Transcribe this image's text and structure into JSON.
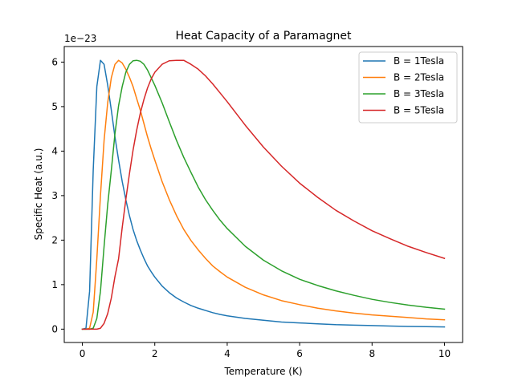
{
  "chart_data": {
    "type": "line",
    "title": "Heat Capacity of a Paramagnet",
    "xlabel": "Temperature (K)",
    "ylabel": "Specific Heat (a.u.)",
    "offset_text": "1e−23",
    "xlim": [
      -0.5,
      10.5
    ],
    "ylim": [
      -0.3,
      6.35
    ],
    "xticks": [
      0,
      2,
      4,
      6,
      8,
      10
    ],
    "xtick_labels": [
      "0",
      "2",
      "4",
      "6",
      "8",
      "10"
    ],
    "yticks": [
      0,
      1,
      2,
      3,
      4,
      5,
      6
    ],
    "ytick_labels": [
      "0",
      "1",
      "2",
      "3",
      "4",
      "5",
      "6"
    ],
    "grid": false,
    "legend_position": "top-right",
    "x": [
      0,
      0.1,
      0.2,
      0.3,
      0.4,
      0.5,
      0.6,
      0.7,
      0.8,
      0.9,
      1.0,
      1.1,
      1.2,
      1.3,
      1.4,
      1.5,
      1.6,
      1.7,
      1.8,
      1.9,
      2.0,
      2.2,
      2.4,
      2.6,
      2.8,
      3.0,
      3.2,
      3.4,
      3.6,
      3.8,
      4.0,
      4.5,
      5.0,
      5.5,
      6.0,
      6.5,
      7.0,
      7.5,
      8.0,
      8.5,
      9.0,
      9.5,
      10.0
    ],
    "series": [
      {
        "name": "B = 1Tesla",
        "color": "#1f77b4",
        "values": [
          0,
          0.02,
          0.85,
          3.57,
          5.45,
          6.04,
          5.95,
          5.48,
          4.92,
          4.32,
          3.8,
          3.32,
          2.91,
          2.55,
          2.24,
          1.99,
          1.78,
          1.59,
          1.42,
          1.29,
          1.17,
          0.97,
          0.82,
          0.7,
          0.61,
          0.53,
          0.47,
          0.42,
          0.37,
          0.33,
          0.3,
          0.24,
          0.2,
          0.16,
          0.14,
          0.12,
          0.1,
          0.09,
          0.08,
          0.07,
          0.06,
          0.055,
          0.05
        ]
      },
      {
        "name": "B = 2Tesla",
        "color": "#ff7f0e",
        "values": [
          0,
          0,
          0.02,
          0.38,
          1.58,
          3.0,
          4.24,
          5.09,
          5.65,
          5.95,
          6.04,
          5.98,
          5.84,
          5.66,
          5.45,
          5.18,
          4.92,
          4.62,
          4.32,
          4.05,
          3.8,
          3.32,
          2.91,
          2.55,
          2.24,
          1.99,
          1.78,
          1.59,
          1.42,
          1.29,
          1.17,
          0.94,
          0.77,
          0.64,
          0.55,
          0.47,
          0.41,
          0.36,
          0.32,
          0.29,
          0.26,
          0.23,
          0.21
        ]
      },
      {
        "name": "B = 3Tesla",
        "color": "#2ca02c",
        "values": [
          0,
          0,
          0,
          0.02,
          0.24,
          0.85,
          1.86,
          2.8,
          3.57,
          4.39,
          5.02,
          5.45,
          5.77,
          5.95,
          6.03,
          6.04,
          6.02,
          5.95,
          5.82,
          5.65,
          5.48,
          5.09,
          4.66,
          4.24,
          3.86,
          3.52,
          3.19,
          2.91,
          2.67,
          2.45,
          2.26,
          1.86,
          1.55,
          1.31,
          1.12,
          0.98,
          0.86,
          0.76,
          0.67,
          0.6,
          0.54,
          0.49,
          0.45
        ]
      },
      {
        "name": "B = 5Tesla",
        "color": "#d62728",
        "values": [
          0,
          0,
          0,
          0,
          0,
          0.02,
          0.13,
          0.35,
          0.7,
          1.18,
          1.58,
          2.28,
          2.91,
          3.49,
          4.02,
          4.47,
          4.85,
          5.16,
          5.42,
          5.62,
          5.77,
          5.95,
          6.03,
          6.04,
          6.04,
          5.95,
          5.84,
          5.69,
          5.51,
          5.31,
          5.11,
          4.58,
          4.09,
          3.66,
          3.28,
          2.96,
          2.67,
          2.43,
          2.21,
          2.03,
          1.86,
          1.72,
          1.59
        ]
      }
    ]
  }
}
